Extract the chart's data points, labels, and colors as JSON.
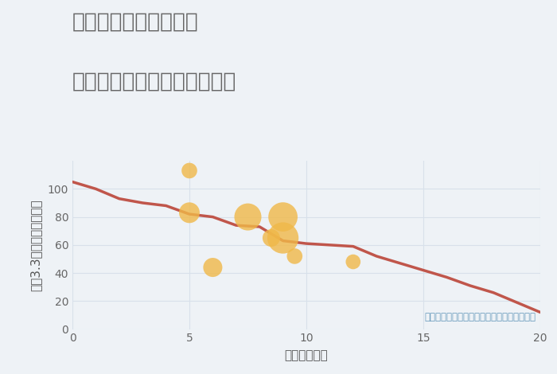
{
  "title_line1": "福岡県太宰府市水城の",
  "title_line2": "駅距離別中古マンション価格",
  "xlabel": "駅距離（分）",
  "ylabel": "坪（3.3㎡）単価（万円）",
  "background_color": "#eef2f6",
  "plot_bg_color": "#eef2f6",
  "line_color": "#c0564b",
  "line_x": [
    0,
    1,
    2,
    3,
    4,
    5,
    6,
    7,
    8,
    9,
    10,
    11,
    12,
    13,
    14,
    15,
    16,
    17,
    18,
    19,
    20
  ],
  "line_y": [
    105,
    100,
    93,
    90,
    88,
    82,
    80,
    74,
    73,
    63,
    61,
    60,
    59,
    52,
    47,
    42,
    37,
    31,
    26,
    19,
    12
  ],
  "scatter_x": [
    5,
    5,
    6,
    7.5,
    8.5,
    9,
    9,
    9.5,
    12
  ],
  "scatter_y": [
    113,
    83,
    44,
    80,
    65,
    80,
    65,
    52,
    48
  ],
  "scatter_sizes": [
    200,
    350,
    300,
    600,
    250,
    700,
    800,
    200,
    180
  ],
  "scatter_color": "#f0b848",
  "scatter_alpha": 0.8,
  "annotation": "円の大きさは、取引のあった物件面積を示す",
  "annotation_color": "#6699bb",
  "xlim": [
    0,
    20
  ],
  "ylim": [
    0,
    120
  ],
  "xticks": [
    0,
    5,
    10,
    15,
    20
  ],
  "yticks": [
    0,
    20,
    40,
    60,
    80,
    100
  ],
  "title_fontsize": 19,
  "label_fontsize": 11,
  "tick_fontsize": 10,
  "grid_color": "#d8e0ea",
  "title_color": "#666666"
}
